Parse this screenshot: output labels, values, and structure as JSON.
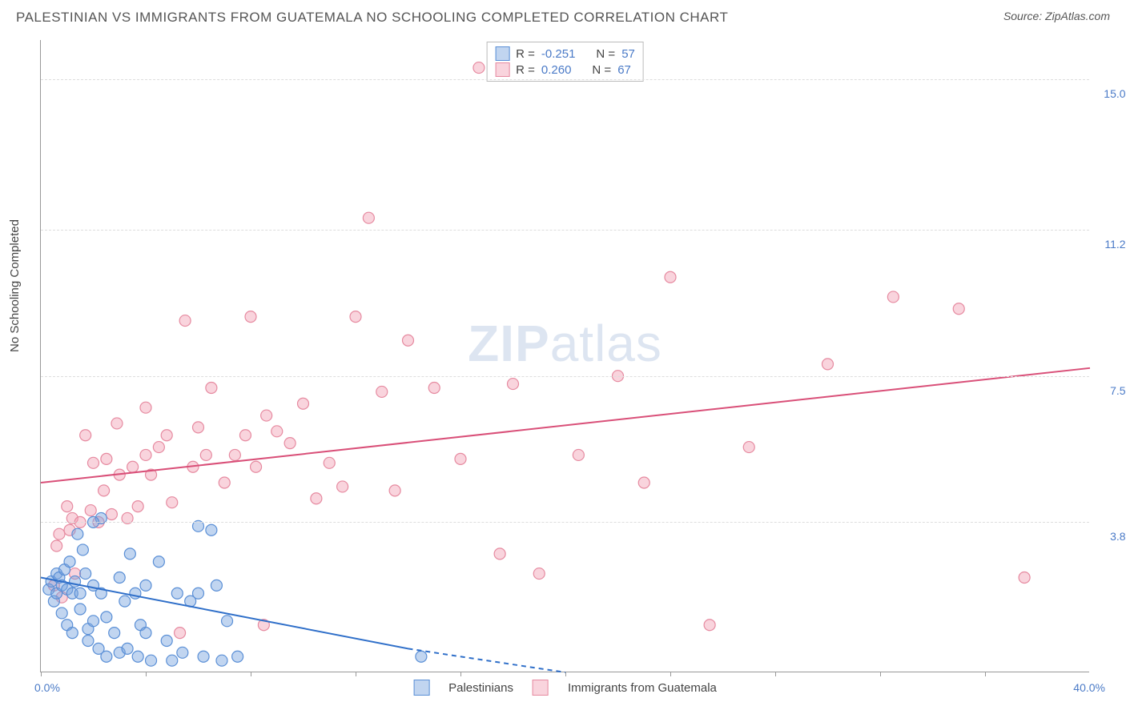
{
  "header": {
    "title": "PALESTINIAN VS IMMIGRANTS FROM GUATEMALA NO SCHOOLING COMPLETED CORRELATION CHART",
    "source": "Source: ZipAtlas.com"
  },
  "chart": {
    "type": "scatter",
    "ylabel": "No Schooling Completed",
    "xlim": [
      0,
      40
    ],
    "ylim": [
      0,
      16
    ],
    "x_axis_min_label": "0.0%",
    "x_axis_max_label": "40.0%",
    "xtick_positions": [
      0,
      4,
      8,
      12,
      16,
      20,
      24,
      28,
      32,
      36
    ],
    "yticks": [
      {
        "v": 3.8,
        "label": "3.8%"
      },
      {
        "v": 7.5,
        "label": "7.5%"
      },
      {
        "v": 11.2,
        "label": "11.2%"
      },
      {
        "v": 15.0,
        "label": "15.0%"
      }
    ],
    "grid_color": "#dddddd",
    "background_color": "#ffffff",
    "watermark": {
      "bold": "ZIP",
      "rest": "atlas"
    },
    "series": {
      "blue": {
        "label": "Palestinians",
        "fill": "rgba(118,162,222,0.45)",
        "stroke": "#5a8fd6",
        "trend": {
          "x1": 0,
          "y1": 2.4,
          "x2": 14,
          "y2": 0.6,
          "dash_x2": 20,
          "dash_y2": 0.0,
          "color": "#2f6fc9"
        },
        "R": "-0.251",
        "N": "57",
        "points": [
          [
            0.3,
            2.1
          ],
          [
            0.4,
            2.3
          ],
          [
            0.5,
            1.8
          ],
          [
            0.6,
            2.5
          ],
          [
            0.6,
            2.0
          ],
          [
            0.7,
            2.4
          ],
          [
            0.8,
            2.2
          ],
          [
            0.8,
            1.5
          ],
          [
            0.9,
            2.6
          ],
          [
            1.0,
            2.1
          ],
          [
            1.0,
            1.2
          ],
          [
            1.1,
            2.8
          ],
          [
            1.2,
            2.0
          ],
          [
            1.2,
            1.0
          ],
          [
            1.3,
            2.3
          ],
          [
            1.4,
            3.5
          ],
          [
            1.5,
            2.0
          ],
          [
            1.5,
            1.6
          ],
          [
            1.6,
            3.1
          ],
          [
            1.7,
            2.5
          ],
          [
            1.8,
            1.1
          ],
          [
            1.8,
            0.8
          ],
          [
            2.0,
            2.2
          ],
          [
            2.0,
            1.3
          ],
          [
            2.2,
            0.6
          ],
          [
            2.3,
            2.0
          ],
          [
            2.3,
            3.9
          ],
          [
            2.5,
            0.4
          ],
          [
            2.5,
            1.4
          ],
          [
            2.8,
            1.0
          ],
          [
            3.0,
            2.4
          ],
          [
            3.0,
            0.5
          ],
          [
            3.2,
            1.8
          ],
          [
            3.3,
            0.6
          ],
          [
            3.4,
            3.0
          ],
          [
            3.6,
            2.0
          ],
          [
            3.7,
            0.4
          ],
          [
            3.8,
            1.2
          ],
          [
            4.0,
            2.2
          ],
          [
            4.0,
            1.0
          ],
          [
            4.2,
            0.3
          ],
          [
            4.5,
            2.8
          ],
          [
            4.8,
            0.8
          ],
          [
            5.0,
            0.3
          ],
          [
            5.2,
            2.0
          ],
          [
            5.4,
            0.5
          ],
          [
            5.7,
            1.8
          ],
          [
            6.0,
            3.7
          ],
          [
            6.0,
            2.0
          ],
          [
            6.2,
            0.4
          ],
          [
            6.5,
            3.6
          ],
          [
            6.7,
            2.2
          ],
          [
            6.9,
            0.3
          ],
          [
            7.1,
            1.3
          ],
          [
            7.5,
            0.4
          ],
          [
            14.5,
            0.4
          ],
          [
            2.0,
            3.8
          ]
        ]
      },
      "pink": {
        "label": "Immigrants from Guatemala",
        "fill": "rgba(242,160,180,0.45)",
        "stroke": "#e68aa0",
        "trend": {
          "x1": 0,
          "y1": 4.8,
          "x2": 40,
          "y2": 7.7,
          "color": "#d94f78"
        },
        "R": "0.260",
        "N": "67",
        "points": [
          [
            0.5,
            2.2
          ],
          [
            0.6,
            3.2
          ],
          [
            0.7,
            3.5
          ],
          [
            0.8,
            1.9
          ],
          [
            1.0,
            4.2
          ],
          [
            1.1,
            3.6
          ],
          [
            1.2,
            3.9
          ],
          [
            1.3,
            2.5
          ],
          [
            1.5,
            3.8
          ],
          [
            1.7,
            6.0
          ],
          [
            1.9,
            4.1
          ],
          [
            2.0,
            5.3
          ],
          [
            2.2,
            3.8
          ],
          [
            2.4,
            4.6
          ],
          [
            2.5,
            5.4
          ],
          [
            2.7,
            4.0
          ],
          [
            2.9,
            6.3
          ],
          [
            3.0,
            5.0
          ],
          [
            3.3,
            3.9
          ],
          [
            3.5,
            5.2
          ],
          [
            3.7,
            4.2
          ],
          [
            4.0,
            5.5
          ],
          [
            4.0,
            6.7
          ],
          [
            4.2,
            5.0
          ],
          [
            4.5,
            5.7
          ],
          [
            4.8,
            6.0
          ],
          [
            5.0,
            4.3
          ],
          [
            5.3,
            1.0
          ],
          [
            5.5,
            8.9
          ],
          [
            5.8,
            5.2
          ],
          [
            6.0,
            6.2
          ],
          [
            6.3,
            5.5
          ],
          [
            6.5,
            7.2
          ],
          [
            7.0,
            4.8
          ],
          [
            7.4,
            5.5
          ],
          [
            7.8,
            6.0
          ],
          [
            8.0,
            9.0
          ],
          [
            8.2,
            5.2
          ],
          [
            8.5,
            1.2
          ],
          [
            8.6,
            6.5
          ],
          [
            9.0,
            6.1
          ],
          [
            9.5,
            5.8
          ],
          [
            10.0,
            6.8
          ],
          [
            10.5,
            4.4
          ],
          [
            11.0,
            5.3
          ],
          [
            11.5,
            4.7
          ],
          [
            12.0,
            9.0
          ],
          [
            12.5,
            11.5
          ],
          [
            13.0,
            7.1
          ],
          [
            13.5,
            4.6
          ],
          [
            14.0,
            8.4
          ],
          [
            15.0,
            7.2
          ],
          [
            16.0,
            5.4
          ],
          [
            16.7,
            15.3
          ],
          [
            17.5,
            3.0
          ],
          [
            18.0,
            7.3
          ],
          [
            19.0,
            2.5
          ],
          [
            20.5,
            5.5
          ],
          [
            22.0,
            7.5
          ],
          [
            23.0,
            4.8
          ],
          [
            24.0,
            10.0
          ],
          [
            25.5,
            1.2
          ],
          [
            27.0,
            5.7
          ],
          [
            30.0,
            7.8
          ],
          [
            32.5,
            9.5
          ],
          [
            35.0,
            9.2
          ],
          [
            37.5,
            2.4
          ]
        ]
      }
    }
  },
  "legend_labels": {
    "R": "R =",
    "N": "N ="
  }
}
